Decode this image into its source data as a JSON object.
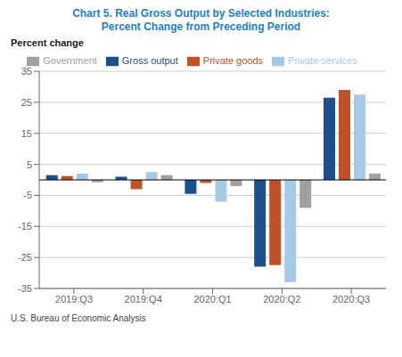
{
  "chart_data": {
    "type": "bar",
    "title": "Chart 5. Real Gross Output by Selected Industries:",
    "subtitle": "Percent Change from Preceding Period",
    "ylabel": "Percent change",
    "annotations": [
      "U.S. Bureau of Economic Analysis"
    ],
    "categories": [
      "2019:Q3",
      "2019:Q4",
      "2020:Q1",
      "2020:Q2",
      "2020:Q3"
    ],
    "series": [
      {
        "name": "Gross output",
        "color": "#1F4E8C",
        "values": [
          1.5,
          1.0,
          -4.5,
          -28.0,
          26.5
        ]
      },
      {
        "name": "Private goods",
        "color": "#C0522A",
        "values": [
          1.2,
          -3.0,
          -1.0,
          -27.5,
          29.0
        ]
      },
      {
        "name": "Private services",
        "color": "#A8C8E8",
        "values": [
          2.0,
          2.5,
          -7.0,
          -33.0,
          27.5
        ]
      },
      {
        "name": "Government",
        "color": "#A0A0A0",
        "values": [
          -0.8,
          1.5,
          -2.0,
          -9.0,
          2.0
        ]
      }
    ],
    "ylim": [
      -35,
      35
    ],
    "yticks": [
      -35,
      -25,
      -15,
      -5,
      5,
      15,
      25,
      35
    ],
    "grid": true,
    "legend": "top"
  }
}
